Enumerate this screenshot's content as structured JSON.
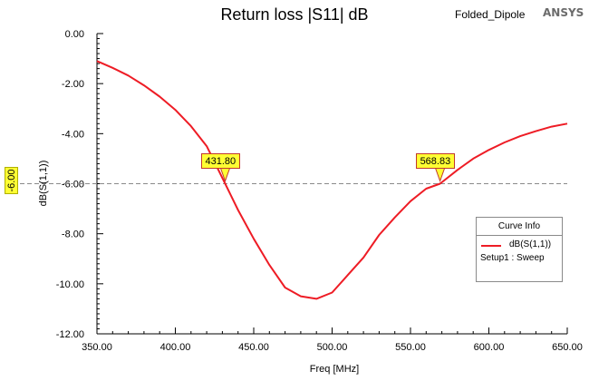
{
  "title": "Return loss |S11| dB",
  "project": "Folded_Dipole",
  "brand": "ANSYS",
  "reference_badge": "-6.00",
  "legend": {
    "header": "Curve Info",
    "series_name": "dB(S(1,1))",
    "setup": "Setup1 : Sweep"
  },
  "chart_data": {
    "type": "line",
    "xlabel": "Freq [MHz]",
    "ylabel": "dB(S(1,1))",
    "xlim": [
      350,
      650
    ],
    "ylim": [
      -12,
      0
    ],
    "xticks": [
      "350.00",
      "400.00",
      "450.00",
      "500.00",
      "550.00",
      "600.00",
      "650.00"
    ],
    "yticks": [
      "0.00",
      "-2.00",
      "-4.00",
      "-6.00",
      "-8.00",
      "-10.00",
      "-12.00"
    ],
    "x_tick_values": [
      350,
      400,
      450,
      500,
      550,
      600,
      650
    ],
    "y_tick_values": [
      0,
      -2,
      -4,
      -6,
      -8,
      -10,
      -12
    ],
    "grid": false,
    "legend_position": "right",
    "reference_line": {
      "y": -6
    },
    "series": [
      {
        "name": "dB(S(1,1))",
        "color": "#ee1c25",
        "x": [
          350,
          360,
          370,
          380,
          390,
          400,
          410,
          420,
          431.8,
          440,
          450,
          460,
          470,
          480,
          490,
          500,
          510,
          520,
          530,
          540,
          550,
          560,
          568.83,
          580,
          590,
          600,
          610,
          620,
          630,
          640,
          650
        ],
        "y": [
          -1.1,
          -1.37,
          -1.68,
          -2.07,
          -2.52,
          -3.05,
          -3.7,
          -4.5,
          -6.0,
          -7.05,
          -8.2,
          -9.25,
          -10.15,
          -10.5,
          -10.6,
          -10.35,
          -9.65,
          -8.95,
          -8.05,
          -7.35,
          -6.7,
          -6.2,
          -6.0,
          -5.45,
          -5.0,
          -4.65,
          -4.35,
          -4.1,
          -3.9,
          -3.72,
          -3.6
        ]
      }
    ],
    "markers": [
      {
        "label": "431.80",
        "x": 431.8,
        "y": -6.0
      },
      {
        "label": "568.83",
        "x": 568.83,
        "y": -6.0
      }
    ]
  }
}
